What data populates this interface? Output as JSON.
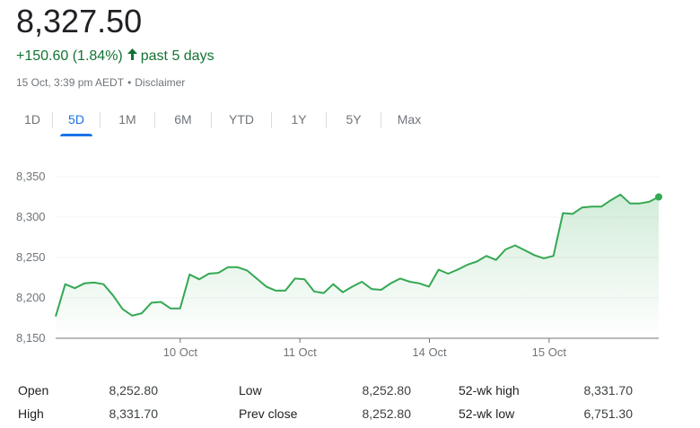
{
  "quote": {
    "price": "8,327.50",
    "change": "+150.60 (1.84%)",
    "arrow_icon": "arrow-up-icon",
    "period": "past 5 days",
    "timestamp": "15 Oct, 3:39 pm AEDT",
    "separator": "•",
    "disclaimer": "Disclaimer",
    "up_color": "#137333"
  },
  "tabs": [
    {
      "label": "1D",
      "selected": false
    },
    {
      "label": "5D",
      "selected": true
    },
    {
      "label": "1M",
      "selected": false
    },
    {
      "label": "6M",
      "selected": false
    },
    {
      "label": "YTD",
      "selected": false
    },
    {
      "label": "1Y",
      "selected": false
    },
    {
      "label": "5Y",
      "selected": false
    },
    {
      "label": "Max",
      "selected": false
    }
  ],
  "chart_data": {
    "type": "area",
    "line_color": "#34a853",
    "ylim": [
      8150,
      8350
    ],
    "y_ticks": [
      8150,
      8200,
      8250,
      8300,
      8350
    ],
    "y_tick_labels": [
      "8,150",
      "8,200",
      "8,250",
      "8,300",
      "8,350"
    ],
    "x_labels": [
      {
        "label": "10 Oct",
        "at": 12.5
      },
      {
        "label": "11 Oct",
        "at": 24.5
      },
      {
        "label": "14 Oct",
        "at": 37.5
      },
      {
        "label": "15 Oct",
        "at": 49.5
      }
    ],
    "x_max": 60.5,
    "grid": true,
    "values": [
      8177,
      8217,
      8212,
      8218,
      8219,
      8217,
      8203,
      8186,
      8178,
      8181,
      8194,
      8195,
      8187,
      8187,
      8229,
      8223,
      8230,
      8231,
      8238,
      8238,
      8234,
      8224,
      8214,
      8209,
      8209,
      8224,
      8223,
      8208,
      8206,
      8217,
      8207,
      8214,
      8220,
      8211,
      8210,
      8218,
      8224,
      8220,
      8218,
      8214,
      8235,
      8230,
      8235,
      8241,
      8245,
      8252,
      8247,
      8260,
      8265,
      8259,
      8253,
      8249,
      8252,
      8305,
      8304,
      8312,
      8313,
      8313,
      8321,
      8328,
      8317,
      8317,
      8319,
      8325
    ]
  },
  "stats": {
    "rows": [
      [
        {
          "label": "Open",
          "value": "8,252.80"
        },
        {
          "label": "Low",
          "value": "8,252.80"
        },
        {
          "label": "52-wk high",
          "value": "8,331.70"
        }
      ],
      [
        {
          "label": "High",
          "value": "8,331.70"
        },
        {
          "label": "Prev close",
          "value": "8,252.80"
        },
        {
          "label": "52-wk low",
          "value": "6,751.30"
        }
      ]
    ]
  }
}
